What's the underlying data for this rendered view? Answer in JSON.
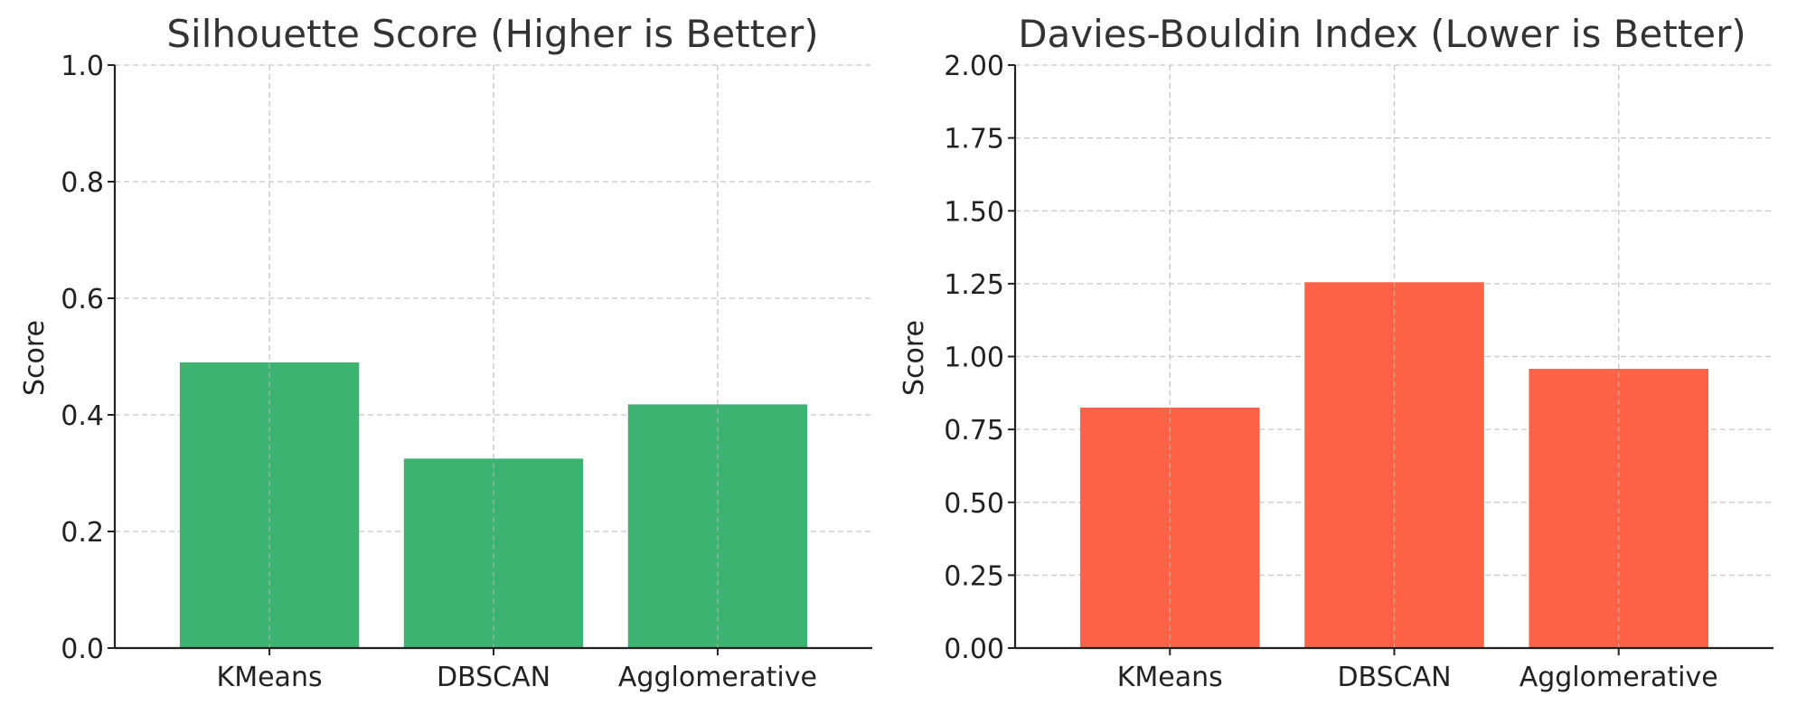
{
  "chart_data": [
    {
      "type": "bar",
      "title": "Silhouette Score (Higher is Better)",
      "xlabel": "",
      "ylabel": "Score",
      "categories": [
        "KMeans",
        "DBSCAN",
        "Agglomerative"
      ],
      "values": [
        0.49,
        0.325,
        0.418
      ],
      "ylim": [
        0,
        1.0
      ],
      "yticks": [
        "0.0",
        "0.2",
        "0.4",
        "0.6",
        "0.8",
        "1.0"
      ],
      "ytick_values": [
        0,
        0.2,
        0.4,
        0.6,
        0.8,
        1.0
      ],
      "color": "#3cb371",
      "grid": true
    },
    {
      "type": "bar",
      "title": "Davies-Bouldin Index (Lower is Better)",
      "xlabel": "",
      "ylabel": "Score",
      "categories": [
        "KMeans",
        "DBSCAN",
        "Agglomerative"
      ],
      "values": [
        0.825,
        1.255,
        0.958
      ],
      "ylim": [
        0,
        2.0
      ],
      "yticks": [
        "0.00",
        "0.25",
        "0.50",
        "0.75",
        "1.00",
        "1.25",
        "1.50",
        "1.75",
        "2.00"
      ],
      "ytick_values": [
        0,
        0.25,
        0.5,
        0.75,
        1.0,
        1.25,
        1.5,
        1.75,
        2.0
      ],
      "color": "#ff6347",
      "grid": true
    }
  ]
}
